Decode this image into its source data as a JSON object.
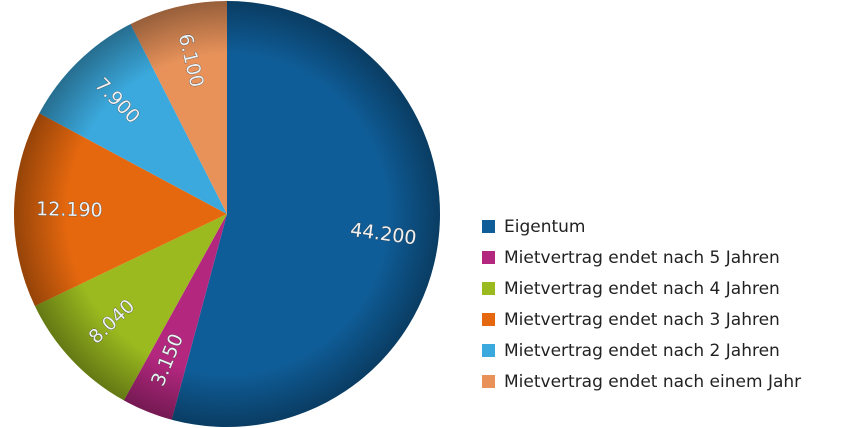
{
  "chart_data": {
    "type": "pie",
    "categories": [
      "Eigentum",
      "Mietvertrag endet nach 5 Jahren",
      "Mietvertrag endet nach 4 Jahren",
      "Mietvertrag endet nach 3 Jahren",
      "Mietvertrag endet nach 2 Jahren",
      "Mietvertrag endet nach einem Jahr"
    ],
    "values": [
      44200,
      3150,
      8040,
      12190,
      7900,
      6100
    ],
    "value_labels": [
      "44.200",
      "3.150",
      "8.040",
      "12.190",
      "7.900",
      "6.100"
    ],
    "colors": [
      "#0f5d98",
      "#b3277f",
      "#9aba1f",
      "#e6680e",
      "#3ba9dd",
      "#e8925a"
    ],
    "legend": "right"
  }
}
